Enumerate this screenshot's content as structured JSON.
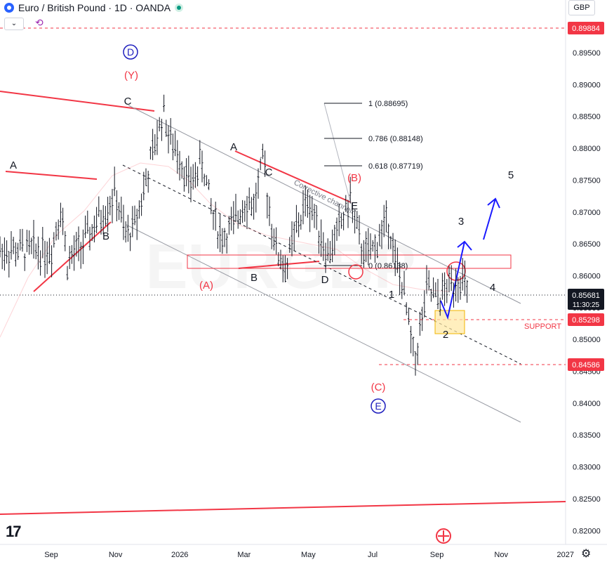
{
  "header": {
    "title": "Euro / British Pound · 1D · OANDA",
    "currency": "GBP",
    "collapse_label": "⌄"
  },
  "colors": {
    "red": "#f23645",
    "blue": "#1a1aff",
    "navy": "#1e1ebe",
    "grid": "#d1d4dc",
    "candle": "#131722",
    "support_box": "#ffe8a3"
  },
  "icons": {
    "logo": "tradingview-logo-icon",
    "sync": "sync-icon",
    "settings": "settings-gear-icon",
    "flag": "uk-flag-icon"
  },
  "chart_data": {
    "type": "candlestick",
    "x_axis": {
      "ticks": [
        "Sep",
        "Nov",
        "2026",
        "Mar",
        "May",
        "Jul",
        "Sep",
        "Nov",
        "2027"
      ],
      "tick_months": [
        0,
        2,
        4,
        6,
        8,
        10,
        12,
        14,
        16
      ]
    },
    "y_axis": {
      "range": [
        0.816,
        0.9015
      ],
      "ticks": [
        0.895,
        0.89,
        0.885,
        0.88,
        0.875,
        0.87,
        0.865,
        0.86,
        0.855,
        0.85,
        0.845,
        0.84,
        0.835,
        0.83,
        0.825,
        0.82
      ],
      "tick_labels": [
        "0.89500",
        "0.89000",
        "0.88500",
        "0.88000",
        "0.87500",
        "0.87000",
        "0.86500",
        "0.86000",
        "0.85500",
        "0.85000",
        "0.84500",
        "0.84000",
        "0.83500",
        "0.83000",
        "0.82500",
        "0.82000"
      ]
    },
    "price_path": [
      {
        "m": 0.0,
        "p": 0.864
      },
      {
        "m": 0.3,
        "p": 0.871
      },
      {
        "m": 0.5,
        "p": 0.862
      },
      {
        "m": 1.0,
        "p": 0.865
      },
      {
        "m": 1.5,
        "p": 0.869
      },
      {
        "m": 2.0,
        "p": 0.873
      },
      {
        "m": 2.3,
        "p": 0.866
      },
      {
        "m": 2.6,
        "p": 0.868
      },
      {
        "m": 3.0,
        "p": 0.876
      },
      {
        "m": 3.3,
        "p": 0.882
      },
      {
        "m": 3.5,
        "p": 0.886
      },
      {
        "m": 3.7,
        "p": 0.881
      },
      {
        "m": 4.0,
        "p": 0.879
      },
      {
        "m": 4.3,
        "p": 0.874
      },
      {
        "m": 4.7,
        "p": 0.878
      },
      {
        "m": 5.0,
        "p": 0.87
      },
      {
        "m": 5.3,
        "p": 0.866
      },
      {
        "m": 5.7,
        "p": 0.868
      },
      {
        "m": 6.0,
        "p": 0.872
      },
      {
        "m": 6.3,
        "p": 0.871
      },
      {
        "m": 6.6,
        "p": 0.878
      },
      {
        "m": 6.8,
        "p": 0.87
      },
      {
        "m": 7.0,
        "p": 0.864
      },
      {
        "m": 7.3,
        "p": 0.861
      },
      {
        "m": 7.6,
        "p": 0.867
      },
      {
        "m": 8.0,
        "p": 0.872
      },
      {
        "m": 8.3,
        "p": 0.868
      },
      {
        "m": 8.6,
        "p": 0.863
      },
      {
        "m": 9.0,
        "p": 0.868
      },
      {
        "m": 9.3,
        "p": 0.872
      },
      {
        "m": 9.6,
        "p": 0.865
      },
      {
        "m": 9.9,
        "p": 0.863
      },
      {
        "m": 10.2,
        "p": 0.866
      },
      {
        "m": 10.5,
        "p": 0.869
      },
      {
        "m": 10.7,
        "p": 0.862
      },
      {
        "m": 10.9,
        "p": 0.859
      },
      {
        "m": 11.1,
        "p": 0.853
      },
      {
        "m": 11.3,
        "p": 0.8465
      },
      {
        "m": 11.5,
        "p": 0.852
      },
      {
        "m": 11.7,
        "p": 0.858
      },
      {
        "m": 12.0,
        "p": 0.856
      },
      {
        "m": 12.4,
        "p": 0.8585
      },
      {
        "m": 12.7,
        "p": 0.86
      },
      {
        "m": 13.0,
        "p": 0.8568
      }
    ],
    "current_price": "0.85681",
    "countdown": "11:30:25",
    "price_levels": [
      {
        "label": "0.89884",
        "value": 0.89884,
        "style": "dashed-red"
      },
      {
        "label": "0.85298",
        "value": 0.85298,
        "style": "dashed-red"
      },
      {
        "label": "0.84586",
        "value": 0.84586,
        "style": "dashed-red"
      }
    ],
    "support_label": "SUPPORT",
    "fibonacci": [
      {
        "label": "1 (0.88695)",
        "value": 0.88695
      },
      {
        "label": "0.786 (0.88148)",
        "value": 0.88148
      },
      {
        "label": "0.618 (0.87719)",
        "value": 0.87719
      },
      {
        "label": "0 (0.86138)",
        "value": 0.86138
      }
    ],
    "channel_label": "Corrective channel",
    "watermark": "EURGBP",
    "wave_labels": [
      {
        "text": "A",
        "m": 0.2,
        "p": 0.8765,
        "color": "black"
      },
      {
        "text": "B",
        "m": 1.7,
        "p": 0.8635,
        "color": "black"
      },
      {
        "text": "C",
        "m": 3.5,
        "p": 0.8875,
        "color": "black"
      },
      {
        "text": "A",
        "m": 6.7,
        "p": 0.8807,
        "color": "black"
      },
      {
        "text": "C",
        "m": 7.6,
        "p": 0.8765,
        "color": "black"
      },
      {
        "text": "B",
        "m": 7.4,
        "p": 0.8575,
        "color": "black"
      },
      {
        "text": "D",
        "m": 9.1,
        "p": 0.857,
        "color": "black"
      },
      {
        "text": "E",
        "m": 10.0,
        "p": 0.8705,
        "color": "black"
      },
      {
        "text": "(A)",
        "m": 5.8,
        "p": 0.856,
        "color": "red"
      },
      {
        "text": "(B)",
        "m": 10.0,
        "p": 0.872,
        "color": "red"
      },
      {
        "text": "(C)",
        "m": 10.9,
        "p": 0.8415,
        "color": "red"
      },
      {
        "text": "(Y)",
        "m": 3.3,
        "p": 0.8925,
        "color": "red"
      },
      {
        "text": "1",
        "m": 11.1,
        "p": 0.8585,
        "color": "black"
      },
      {
        "text": "2",
        "m": 12.6,
        "p": 0.8495,
        "color": "black"
      },
      {
        "text": "3",
        "m": 13.1,
        "p": 0.8685,
        "color": "black"
      },
      {
        "text": "4",
        "m": 14.0,
        "p": 0.8575,
        "color": "black"
      },
      {
        "text": "5",
        "m": 14.6,
        "p": 0.8755,
        "color": "black"
      }
    ],
    "circled_labels": [
      {
        "text": "D",
        "m": 3.4,
        "p": 0.8955,
        "color": "navy"
      },
      {
        "text": "E",
        "m": 10.9,
        "p": 0.8385,
        "color": "navy"
      }
    ],
    "projection": [
      {
        "m": 12.5,
        "p": 0.8625
      },
      {
        "m": 12.7,
        "p": 0.8525
      },
      {
        "m": 13.2,
        "p": 0.8665
      },
      {
        "m": 13.6,
        "p": 0.8645
      },
      {
        "m": 14.1,
        "p": 0.8715
      }
    ]
  }
}
